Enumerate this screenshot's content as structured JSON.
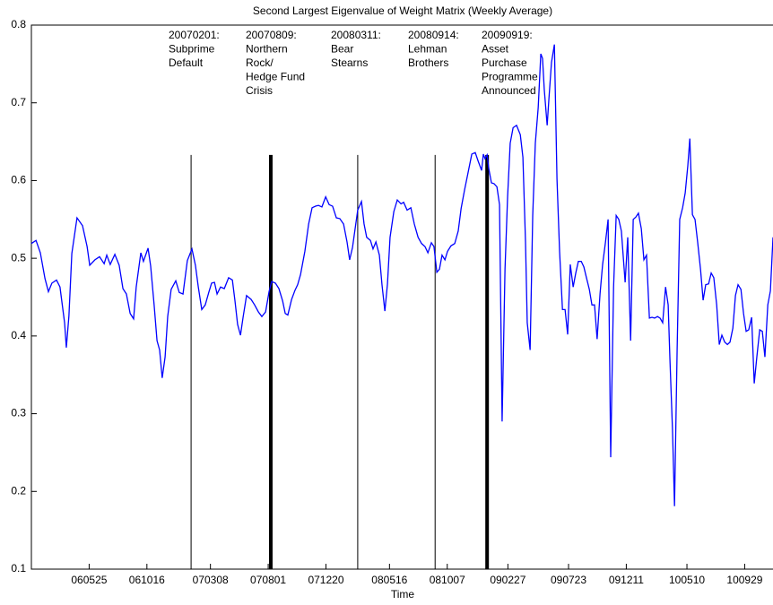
{
  "chart_data": {
    "type": "line",
    "title": "Second Largest Eigenvalue of Weight Matrix (Weekly Average)",
    "x_label": "Time",
    "color": "#0000ff",
    "xlim": [
      0,
      256.8
    ],
    "ylim": [
      0.1,
      0.8
    ],
    "yticks": [
      0.1,
      0.2,
      0.3,
      0.4,
      0.5,
      0.6,
      0.7,
      0.8
    ],
    "xticks": [
      {
        "value": 20,
        "label": "060525"
      },
      {
        "value": 40,
        "label": "061016"
      },
      {
        "value": 62,
        "label": "070308"
      },
      {
        "value": 82,
        "label": "070801"
      },
      {
        "value": 102,
        "label": "071220"
      },
      {
        "value": 124,
        "label": "080516"
      },
      {
        "value": 144,
        "label": "081007"
      },
      {
        "value": 165,
        "label": "090227"
      },
      {
        "value": 186,
        "label": "090723"
      },
      {
        "value": 206,
        "label": "091211"
      },
      {
        "value": 227,
        "label": "100510"
      },
      {
        "value": 247,
        "label": "100929"
      }
    ],
    "x": [
      0,
      1.6,
      3.1,
      4.7,
      5.9,
      7.1,
      8.7,
      9.9,
      11.5,
      12.1,
      13.0,
      14.0,
      15.8,
      17.7,
      19.3,
      20.2,
      22.0,
      23.6,
      25.2,
      26.1,
      27.3,
      28.9,
      30.4,
      31.7,
      32.9,
      34.2,
      35.4,
      36.3,
      37.9,
      38.8,
      40.4,
      41.3,
      42.5,
      43.5,
      44.4,
      45.3,
      46.3,
      47.2,
      48.4,
      50.0,
      51.2,
      52.5,
      54.0,
      55.6,
      56.8,
      57.8,
      59.0,
      60.2,
      61.5,
      62.4,
      63.4,
      64.3,
      65.5,
      66.8,
      68.3,
      69.6,
      70.5,
      71.4,
      72.4,
      73.3,
      74.5,
      76.1,
      77.3,
      78.6,
      79.8,
      81.1,
      82.3,
      83.2,
      84.5,
      85.7,
      87.0,
      87.9,
      88.8,
      90.1,
      91.3,
      92.2,
      93.2,
      94.7,
      96.0,
      97.2,
      98.4,
      99.4,
      100.6,
      101.9,
      103.1,
      104.3,
      105.6,
      106.8,
      108.1,
      109.3,
      110.2,
      111.2,
      112.1,
      113.0,
      114.3,
      115.2,
      116.1,
      117.4,
      118.3,
      119.3,
      120.5,
      121.4,
      122.4,
      123.3,
      124.2,
      125.5,
      126.7,
      128.0,
      128.9,
      130.1,
      131.4,
      132.6,
      133.9,
      135.1,
      136.3,
      137.3,
      138.5,
      139.4,
      140.4,
      141.3,
      142.2,
      143.2,
      144.1,
      145.3,
      146.6,
      147.8,
      148.8,
      150.0,
      151.2,
      152.5,
      153.7,
      154.7,
      155.9,
      156.5,
      157.1,
      157.8,
      158.4,
      159.3,
      160.2,
      161.2,
      162.1,
      163.0,
      164.0,
      164.9,
      165.8,
      166.8,
      168.0,
      169.3,
      170.2,
      171.1,
      171.7,
      172.7,
      173.6,
      174.5,
      175.5,
      176.4,
      177.0,
      177.6,
      178.6,
      179.2,
      180.1,
      181.1,
      182.0,
      182.9,
      183.9,
      184.8,
      185.7,
      186.6,
      187.6,
      188.5,
      189.4,
      190.4,
      191.3,
      192.2,
      193.2,
      194.1,
      195.0,
      195.9,
      196.9,
      197.8,
      198.8,
      199.7,
      200.6,
      201.6,
      202.5,
      203.4,
      204.3,
      205.6,
      206.5,
      207.5,
      208.4,
      209.3,
      210.2,
      211.2,
      212.1,
      213.0,
      214.0,
      214.9,
      215.8,
      216.8,
      217.7,
      218.6,
      219.6,
      220.5,
      221.1,
      222.0,
      222.7,
      223.6,
      224.5,
      225.5,
      226.4,
      227.3,
      228.0,
      228.9,
      229.8,
      230.7,
      231.7,
      232.6,
      233.5,
      234.5,
      235.4,
      236.3,
      237.3,
      238.2,
      239.1,
      240.1,
      241.0,
      241.9,
      242.9,
      243.8,
      244.7,
      245.7,
      246.6,
      247.5,
      248.4,
      249.4,
      250.3,
      251.2,
      252.2,
      253.1,
      254.0,
      255.0,
      255.9,
      256.8
    ],
    "values": [
      0.519,
      0.523,
      0.507,
      0.474,
      0.457,
      0.468,
      0.472,
      0.463,
      0.417,
      0.385,
      0.426,
      0.506,
      0.552,
      0.542,
      0.515,
      0.491,
      0.498,
      0.502,
      0.493,
      0.504,
      0.492,
      0.505,
      0.491,
      0.461,
      0.454,
      0.429,
      0.422,
      0.463,
      0.507,
      0.496,
      0.513,
      0.49,
      0.44,
      0.394,
      0.382,
      0.346,
      0.373,
      0.425,
      0.46,
      0.471,
      0.456,
      0.454,
      0.497,
      0.512,
      0.491,
      0.463,
      0.434,
      0.44,
      0.457,
      0.468,
      0.469,
      0.454,
      0.463,
      0.461,
      0.475,
      0.472,
      0.445,
      0.415,
      0.401,
      0.424,
      0.452,
      0.447,
      0.44,
      0.431,
      0.425,
      0.431,
      0.457,
      0.47,
      0.468,
      0.461,
      0.445,
      0.429,
      0.427,
      0.447,
      0.459,
      0.466,
      0.479,
      0.509,
      0.544,
      0.565,
      0.567,
      0.568,
      0.566,
      0.579,
      0.569,
      0.567,
      0.552,
      0.551,
      0.544,
      0.521,
      0.498,
      0.514,
      0.538,
      0.562,
      0.573,
      0.544,
      0.527,
      0.523,
      0.512,
      0.521,
      0.504,
      0.466,
      0.432,
      0.467,
      0.527,
      0.56,
      0.575,
      0.57,
      0.572,
      0.562,
      0.565,
      0.544,
      0.527,
      0.519,
      0.515,
      0.507,
      0.52,
      0.515,
      0.482,
      0.486,
      0.504,
      0.498,
      0.509,
      0.516,
      0.519,
      0.535,
      0.564,
      0.588,
      0.61,
      0.634,
      0.636,
      0.625,
      0.613,
      0.634,
      0.628,
      0.633,
      0.615,
      0.597,
      0.596,
      0.592,
      0.569,
      0.29,
      0.486,
      0.579,
      0.648,
      0.668,
      0.671,
      0.659,
      0.63,
      0.521,
      0.417,
      0.382,
      0.555,
      0.648,
      0.694,
      0.763,
      0.757,
      0.717,
      0.671,
      0.705,
      0.752,
      0.775,
      0.602,
      0.509,
      0.434,
      0.434,
      0.402,
      0.492,
      0.463,
      0.481,
      0.496,
      0.496,
      0.489,
      0.475,
      0.46,
      0.44,
      0.44,
      0.396,
      0.454,
      0.492,
      0.521,
      0.55,
      0.244,
      0.463,
      0.555,
      0.55,
      0.535,
      0.469,
      0.527,
      0.394,
      0.55,
      0.553,
      0.558,
      0.538,
      0.498,
      0.504,
      0.423,
      0.424,
      0.423,
      0.425,
      0.423,
      0.417,
      0.463,
      0.44,
      0.371,
      0.279,
      0.181,
      0.382,
      0.55,
      0.565,
      0.584,
      0.619,
      0.654,
      0.556,
      0.55,
      0.521,
      0.486,
      0.446,
      0.466,
      0.467,
      0.481,
      0.475,
      0.44,
      0.389,
      0.401,
      0.392,
      0.389,
      0.392,
      0.41,
      0.452,
      0.466,
      0.46,
      0.429,
      0.406,
      0.408,
      0.424,
      0.339,
      0.373,
      0.408,
      0.406,
      0.373,
      0.44,
      0.458,
      0.527
    ],
    "event_lines": [
      {
        "x": 55.3,
        "top": 0.633,
        "bold": false
      },
      {
        "x": 82.9,
        "top": 0.633,
        "bold": true
      },
      {
        "x": 113.0,
        "top": 0.633,
        "bold": false
      },
      {
        "x": 139.8,
        "top": 0.633,
        "bold": false
      },
      {
        "x": 157.8,
        "top": 0.633,
        "bold": true
      }
    ],
    "annotations": [
      [
        "20070201:",
        "Subprime",
        "Default"
      ],
      [
        "20070809:",
        "Northern",
        "Rock/",
        "Hedge Fund",
        "Crisis"
      ],
      [
        "20080311:",
        "Bear",
        "Stearns"
      ],
      [
        "20080914:",
        "Lehman",
        "Brothers"
      ],
      [
        "20090919:",
        "Asset",
        "Purchase",
        "Programme",
        "Announced"
      ]
    ]
  }
}
